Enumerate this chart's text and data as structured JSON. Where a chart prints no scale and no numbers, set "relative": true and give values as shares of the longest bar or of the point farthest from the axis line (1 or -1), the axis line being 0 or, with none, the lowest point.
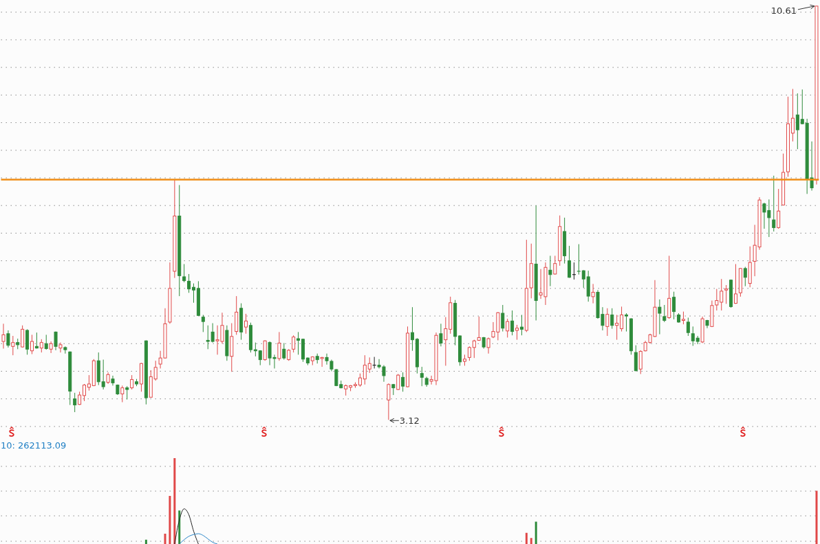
{
  "chart_data": [
    {
      "type": "candlestick",
      "categories": [
        null,
        null,
        null,
        null,
        null,
        null,
        null,
        null,
        null,
        null,
        null,
        null,
        null,
        null,
        null,
        null,
        null,
        null,
        null,
        null,
        null,
        null,
        null,
        null,
        null,
        null,
        null,
        null,
        null,
        null,
        null,
        null,
        null,
        null,
        null,
        null,
        null,
        null,
        null,
        null,
        null,
        null,
        null,
        null,
        null,
        null,
        null,
        null,
        null,
        null,
        null,
        null,
        null,
        null,
        null,
        null,
        null,
        null,
        null,
        null,
        null,
        null,
        null,
        null,
        null,
        null,
        null,
        null,
        null,
        null,
        null,
        null,
        null,
        null,
        null,
        null,
        null,
        null,
        null,
        null,
        null,
        null,
        null,
        null,
        null,
        null,
        null,
        null,
        null,
        null,
        null,
        null,
        null,
        null,
        null,
        null,
        null,
        null,
        null,
        null,
        null,
        null,
        null,
        null,
        null,
        null,
        null,
        null,
        null,
        null,
        null,
        null,
        null,
        null,
        null,
        null,
        null,
        null,
        null,
        null,
        null,
        null,
        null,
        null,
        null,
        null,
        null,
        null,
        null,
        null,
        null,
        null,
        null,
        null,
        null,
        null,
        null,
        null,
        null,
        null,
        null,
        null,
        null,
        null,
        null,
        null,
        null,
        null,
        null,
        null,
        null,
        null,
        null,
        null,
        null,
        null,
        null,
        null,
        null,
        null,
        null,
        null,
        null,
        null,
        null,
        null,
        null,
        null,
        null,
        null,
        null,
        null
      ],
      "ohlc": [
        [
          4.54,
          4.86,
          4.41,
          4.66
        ],
        [
          4.68,
          4.74,
          4.43,
          4.47
        ],
        [
          4.45,
          4.64,
          4.29,
          4.52
        ],
        [
          4.52,
          4.59,
          4.4,
          4.48
        ],
        [
          4.44,
          4.83,
          4.43,
          4.76
        ],
        [
          4.74,
          4.76,
          4.3,
          4.4
        ],
        [
          4.37,
          4.66,
          4.31,
          4.54
        ],
        [
          4.45,
          4.7,
          4.41,
          4.42
        ],
        [
          4.42,
          4.58,
          4.34,
          4.52
        ],
        [
          4.5,
          4.66,
          4.39,
          4.41
        ],
        [
          4.4,
          4.54,
          4.33,
          4.5
        ],
        [
          4.71,
          4.72,
          4.38,
          4.45
        ],
        [
          4.42,
          4.52,
          4.34,
          4.48
        ],
        [
          4.43,
          4.45,
          4.32,
          4.39
        ],
        [
          4.35,
          4.36,
          3.39,
          3.64
        ],
        [
          3.5,
          3.61,
          3.26,
          3.39
        ],
        [
          3.4,
          3.63,
          3.39,
          3.57
        ],
        [
          3.56,
          3.77,
          3.46,
          3.75
        ],
        [
          3.71,
          3.93,
          3.65,
          3.77
        ],
        [
          3.74,
          4.22,
          3.73,
          4.19
        ],
        [
          4.19,
          4.34,
          3.75,
          3.81
        ],
        [
          3.81,
          4.21,
          3.67,
          3.72
        ],
        [
          3.8,
          3.98,
          3.77,
          3.94
        ],
        [
          3.86,
          3.92,
          3.74,
          3.79
        ],
        [
          3.75,
          3.76,
          3.57,
          3.59
        ],
        [
          3.59,
          3.74,
          3.44,
          3.7
        ],
        [
          3.7,
          3.73,
          3.49,
          3.67
        ],
        [
          3.7,
          3.93,
          3.67,
          3.85
        ],
        [
          3.81,
          3.86,
          3.73,
          3.77
        ],
        [
          3.77,
          4.15,
          3.63,
          4.14
        ],
        [
          4.55,
          4.56,
          3.4,
          3.52
        ],
        [
          3.53,
          4.02,
          3.52,
          3.9
        ],
        [
          3.86,
          4.19,
          3.83,
          4.07
        ],
        [
          4.13,
          4.37,
          4.05,
          4.24
        ],
        [
          4.24,
          5.14,
          4.23,
          4.86
        ],
        [
          4.89,
          5.97,
          4.86,
          5.5
        ],
        [
          5.81,
          7.47,
          5.69,
          6.81
        ],
        [
          6.81,
          7.37,
          5.36,
          5.73
        ],
        [
          5.71,
          5.94,
          5.61,
          5.64
        ],
        [
          5.63,
          5.76,
          5.42,
          5.49
        ],
        [
          5.52,
          5.59,
          5.24,
          5.47
        ],
        [
          5.5,
          5.63,
          5.0,
          5.01
        ],
        [
          4.98,
          5.02,
          4.71,
          4.9
        ],
        [
          4.56,
          4.83,
          4.4,
          4.54
        ],
        [
          4.71,
          4.87,
          4.52,
          4.54
        ],
        [
          4.55,
          4.83,
          4.3,
          4.57
        ],
        [
          4.54,
          5.06,
          4.5,
          4.83
        ],
        [
          4.74,
          4.83,
          4.19,
          4.28
        ],
        [
          4.27,
          4.87,
          3.99,
          4.63
        ],
        [
          4.72,
          5.36,
          4.66,
          5.07
        ],
        [
          5.14,
          5.23,
          4.57,
          4.71
        ],
        [
          4.8,
          5.04,
          4.68,
          4.91
        ],
        [
          4.83,
          4.88,
          4.34,
          4.39
        ],
        [
          4.39,
          4.52,
          4.27,
          4.37
        ],
        [
          4.37,
          4.38,
          4.11,
          4.21
        ],
        [
          4.21,
          4.56,
          4.19,
          4.55
        ],
        [
          4.52,
          4.54,
          4.11,
          4.24
        ],
        [
          4.25,
          4.3,
          4.05,
          4.23
        ],
        [
          4.23,
          4.71,
          4.19,
          4.51
        ],
        [
          4.4,
          4.51,
          4.21,
          4.24
        ],
        [
          4.21,
          4.4,
          4.19,
          4.38
        ],
        [
          4.4,
          4.65,
          4.34,
          4.62
        ],
        [
          4.59,
          4.71,
          4.3,
          4.56
        ],
        [
          4.58,
          4.59,
          4.17,
          4.22
        ],
        [
          4.24,
          4.25,
          4.11,
          4.15
        ],
        [
          4.19,
          4.27,
          4.11,
          4.26
        ],
        [
          4.27,
          4.32,
          4.14,
          4.21
        ],
        [
          4.23,
          4.26,
          4.08,
          4.25
        ],
        [
          4.25,
          4.32,
          4.12,
          4.19
        ],
        [
          4.18,
          4.21,
          4.0,
          4.04
        ],
        [
          4.03,
          4.04,
          3.73,
          3.74
        ],
        [
          3.76,
          3.83,
          3.69,
          3.7
        ],
        [
          3.68,
          3.76,
          3.56,
          3.74
        ],
        [
          3.71,
          3.75,
          3.64,
          3.74
        ],
        [
          3.74,
          3.8,
          3.7,
          3.76
        ],
        [
          3.75,
          3.96,
          3.72,
          3.88
        ],
        [
          3.86,
          4.29,
          3.76,
          4.11
        ],
        [
          4.04,
          4.25,
          3.97,
          4.14
        ],
        [
          4.11,
          4.26,
          4.05,
          4.11
        ],
        [
          4.11,
          4.22,
          4.05,
          4.08
        ],
        [
          4.08,
          4.11,
          3.81,
          3.92
        ],
        [
          3.48,
          3.78,
          3.12,
          3.76
        ],
        [
          3.76,
          3.77,
          3.57,
          3.7
        ],
        [
          3.67,
          3.95,
          3.66,
          3.93
        ],
        [
          3.89,
          3.98,
          3.63,
          3.73
        ],
        [
          3.72,
          4.81,
          3.71,
          4.69
        ],
        [
          4.7,
          5.16,
          4.37,
          4.57
        ],
        [
          4.58,
          4.6,
          3.96,
          4.08
        ],
        [
          3.96,
          4.08,
          3.73,
          3.89
        ],
        [
          3.87,
          3.9,
          3.72,
          3.76
        ],
        [
          3.82,
          3.92,
          3.76,
          3.85
        ],
        [
          3.83,
          4.7,
          3.75,
          4.65
        ],
        [
          4.68,
          4.86,
          4.45,
          4.51
        ],
        [
          4.57,
          4.98,
          4.1,
          4.77
        ],
        [
          4.76,
          5.35,
          4.68,
          5.24
        ],
        [
          5.23,
          5.29,
          4.47,
          4.63
        ],
        [
          4.64,
          4.65,
          4.1,
          4.17
        ],
        [
          4.18,
          4.3,
          4.1,
          4.22
        ],
        [
          4.25,
          4.45,
          4.19,
          4.43
        ],
        [
          4.43,
          4.57,
          4.24,
          4.55
        ],
        [
          4.56,
          4.99,
          4.55,
          4.61
        ],
        [
          4.61,
          4.62,
          4.41,
          4.44
        ],
        [
          4.43,
          4.61,
          4.32,
          4.59
        ],
        [
          4.62,
          4.89,
          4.6,
          4.72
        ],
        [
          4.71,
          5.07,
          4.56,
          5.06
        ],
        [
          5.05,
          5.2,
          4.72,
          4.78
        ],
        [
          4.73,
          4.95,
          4.61,
          4.9
        ],
        [
          4.91,
          5.1,
          4.65,
          4.72
        ],
        [
          4.74,
          4.84,
          4.57,
          4.78
        ],
        [
          4.8,
          5.02,
          4.65,
          4.76
        ],
        [
          4.74,
          6.38,
          4.71,
          5.5
        ],
        [
          5.51,
          6.31,
          5.32,
          5.95
        ],
        [
          5.94,
          7.0,
          4.92,
          5.28
        ],
        [
          5.38,
          5.85,
          5.31,
          5.42
        ],
        [
          5.35,
          5.97,
          5.2,
          5.88
        ],
        [
          5.83,
          6.09,
          5.54,
          5.75
        ],
        [
          5.76,
          6.09,
          5.75,
          5.95
        ],
        [
          6.0,
          6.82,
          5.91,
          6.62
        ],
        [
          6.53,
          6.78,
          5.95,
          6.09
        ],
        [
          6.0,
          6.27,
          5.69,
          5.7
        ],
        [
          5.75,
          5.97,
          5.66,
          5.75
        ],
        [
          5.81,
          6.3,
          5.75,
          5.8
        ],
        [
          5.82,
          5.83,
          5.51,
          5.67
        ],
        [
          5.71,
          5.82,
          5.26,
          5.36
        ],
        [
          5.35,
          5.58,
          5.23,
          5.43
        ],
        [
          5.43,
          5.47,
          4.95,
          4.97
        ],
        [
          5.03,
          5.16,
          4.74,
          4.83
        ],
        [
          4.81,
          5.14,
          4.64,
          5.03
        ],
        [
          5.02,
          5.14,
          4.77,
          4.83
        ],
        [
          4.83,
          5.02,
          4.57,
          4.87
        ],
        [
          4.77,
          5.17,
          4.72,
          5.02
        ],
        [
          5.02,
          5.05,
          4.72,
          5.0
        ],
        [
          4.95,
          4.96,
          4.3,
          4.37
        ],
        [
          4.34,
          4.47,
          4.0,
          4.01
        ],
        [
          4.04,
          4.38,
          3.95,
          4.36
        ],
        [
          4.37,
          4.55,
          4.36,
          4.52
        ],
        [
          4.52,
          4.68,
          4.5,
          4.66
        ],
        [
          4.63,
          5.65,
          4.62,
          5.16
        ],
        [
          5.16,
          5.3,
          4.67,
          5.05
        ],
        [
          4.99,
          5.2,
          4.89,
          4.92
        ],
        [
          4.97,
          6.09,
          4.95,
          5.32
        ],
        [
          5.34,
          5.44,
          4.94,
          5.08
        ],
        [
          5.02,
          5.05,
          4.88,
          4.89
        ],
        [
          4.92,
          5.08,
          4.85,
          4.94
        ],
        [
          4.89,
          4.97,
          4.64,
          4.7
        ],
        [
          4.68,
          4.81,
          4.46,
          4.55
        ],
        [
          4.6,
          4.64,
          4.49,
          4.54
        ],
        [
          4.53,
          4.99,
          4.51,
          4.95
        ],
        [
          4.92,
          4.93,
          4.78,
          4.83
        ],
        [
          4.81,
          5.28,
          4.8,
          5.19
        ],
        [
          5.2,
          5.49,
          5.1,
          5.28
        ],
        [
          5.25,
          5.67,
          5.1,
          5.45
        ],
        [
          5.47,
          5.56,
          5.22,
          5.49
        ],
        [
          5.65,
          5.66,
          5.15,
          5.17
        ],
        [
          5.23,
          5.94,
          5.22,
          5.4
        ],
        [
          5.42,
          5.87,
          5.35,
          5.86
        ],
        [
          5.86,
          5.89,
          5.54,
          5.7
        ],
        [
          5.59,
          6.26,
          5.52,
          5.97
        ],
        [
          5.99,
          6.65,
          5.72,
          6.28
        ],
        [
          6.25,
          7.15,
          6.2,
          7.1
        ],
        [
          7.03,
          7.05,
          6.58,
          6.88
        ],
        [
          6.91,
          7.11,
          6.43,
          6.78
        ],
        [
          6.74,
          7.54,
          6.53,
          6.6
        ],
        [
          6.6,
          7.3,
          6.58,
          6.9
        ],
        [
          7.01,
          7.94,
          7.0,
          7.6
        ],
        [
          7.61,
          8.97,
          7.52,
          8.48
        ],
        [
          8.31,
          9.11,
          8.16,
          8.58
        ],
        [
          8.64,
          9.03,
          8.02,
          8.37
        ],
        [
          8.56,
          9.1,
          8.47,
          8.48
        ],
        [
          8.49,
          8.57,
          7.21,
          7.47
        ],
        [
          7.5,
          8.16,
          7.27,
          7.32
        ],
        [
          7.46,
          10.61,
          7.38,
          10.61
        ]
      ],
      "colors": [
        "#e04848",
        "#2e8b3b",
        "#e04848",
        "#2e8b3b",
        "#e04848",
        "#2e8b3b",
        "#e04848",
        "#2e8b3b",
        "#e04848",
        "#2e8b3b",
        "#e04848",
        "#2e8b3b",
        "#e04848",
        "#2e8b3b",
        "#2e8b3b",
        "#2e8b3b",
        "#e04848",
        "#e04848",
        "#e04848",
        "#e04848",
        "#2e8b3b",
        "#2e8b3b",
        "#e04848",
        "#2e8b3b",
        "#2e8b3b",
        "#e04848",
        "#2e8b3b",
        "#e04848",
        "#2e8b3b",
        "#e04848",
        "#2e8b3b",
        "#e04848",
        "#e04848",
        "#e04848",
        "#e04848",
        "#e04848",
        "#e04848",
        "#2e8b3b",
        "#2e8b3b",
        "#2e8b3b",
        "#2e8b3b",
        "#2e8b3b",
        "#2e8b3b",
        "#2e8b3b",
        "#2e8b3b",
        "#e04848",
        "#e04848",
        "#2e8b3b",
        "#e04848",
        "#e04848",
        "#2e8b3b",
        "#e04848",
        "#2e8b3b",
        "#2e8b3b",
        "#2e8b3b",
        "#e04848",
        "#2e8b3b",
        "#2e8b3b",
        "#e04848",
        "#2e8b3b",
        "#e04848",
        "#e04848",
        "#2e8b3b",
        "#2e8b3b",
        "#2e8b3b",
        "#e04848",
        "#2e8b3b",
        "#e04848",
        "#2e8b3b",
        "#2e8b3b",
        "#2e8b3b",
        "#2e8b3b",
        "#e04848",
        "#e04848",
        "#e04848",
        "#e04848",
        "#e04848",
        "#e04848",
        "#222222",
        "#2e8b3b",
        "#2e8b3b",
        "#e04848",
        "#2e8b3b",
        "#e04848",
        "#2e8b3b",
        "#e04848",
        "#2e8b3b",
        "#2e8b3b",
        "#2e8b3b",
        "#2e8b3b",
        "#e04848",
        "#e04848",
        "#2e8b3b",
        "#e04848",
        "#e04848",
        "#2e8b3b",
        "#2e8b3b",
        "#e04848",
        "#e04848",
        "#e04848",
        "#e04848",
        "#2e8b3b",
        "#e04848",
        "#e04848",
        "#e04848",
        "#2e8b3b",
        "#e04848",
        "#2e8b3b",
        "#e04848",
        "#2e8b3b",
        "#e04848",
        "#e04848",
        "#2e8b3b",
        "#e04848",
        "#e04848",
        "#2e8b3b",
        "#e04848",
        "#e04848",
        "#2e8b3b",
        "#2e8b3b",
        "#222222",
        "#2e8b3b",
        "#2e8b3b",
        "#2e8b3b",
        "#e04848",
        "#2e8b3b",
        "#2e8b3b",
        "#e04848",
        "#2e8b3b",
        "#e04848",
        "#e04848",
        "#2e8b3b",
        "#2e8b3b",
        "#2e8b3b",
        "#e04848",
        "#e04848",
        "#e04848",
        "#e04848",
        "#2e8b3b",
        "#2e8b3b",
        "#e04848",
        "#2e8b3b",
        "#2e8b3b",
        "#e04848",
        "#2e8b3b",
        "#2e8b3b",
        "#2e8b3b",
        "#e04848",
        "#2e8b3b",
        "#e04848",
        "#e04848",
        "#e04848",
        "#e04848",
        "#2e8b3b",
        "#e04848",
        "#e04848",
        "#2e8b3b",
        "#e04848",
        "#e04848",
        "#e04848",
        "#2e8b3b",
        "#2e8b3b",
        "#2e8b3b",
        "#e04848",
        "#e04848",
        "#e04848",
        "#e04848",
        "#2e8b3b",
        "#2e8b3b",
        "#2e8b3b",
        "#2e8b3b",
        "#e04848"
      ],
      "yticks": [
        {
          "value": 3,
          "label": null
        },
        {
          "value": 3.5,
          "label": null
        },
        {
          "value": 4,
          "label": null
        },
        {
          "value": 4.5,
          "label": null
        },
        {
          "value": 5,
          "label": null
        },
        {
          "value": 5.5,
          "label": null
        },
        {
          "value": 6,
          "label": null
        },
        {
          "value": 6.5,
          "label": null
        },
        {
          "value": 7,
          "label": null
        },
        {
          "value": 7.5,
          "label": null
        },
        {
          "value": 8,
          "label": null
        },
        {
          "value": 8.5,
          "label": null
        },
        {
          "value": 9,
          "label": null
        },
        {
          "value": 9.5,
          "label": null
        },
        {
          "value": 10,
          "label": null
        },
        {
          "value": 10.5,
          "label": null
        }
      ],
      "grid": "y",
      "tick_labels": false,
      "ref_lines": [
        {
          "axis": "y",
          "value": 7.47,
          "color": "#f08c14"
        }
      ],
      "annotations": [
        "10.61",
        "3.12"
      ]
    },
    {
      "type": "bar",
      "relative": true,
      "categories": [
        null,
        null,
        null,
        null,
        null,
        null,
        null,
        null,
        null,
        null,
        null,
        null,
        null,
        null,
        null,
        null,
        null,
        null,
        null,
        null,
        null,
        null,
        null,
        null,
        null,
        null,
        null,
        null,
        null,
        null,
        null,
        null,
        null,
        null,
        null,
        null,
        null,
        null,
        null,
        null,
        null,
        null,
        null,
        null,
        null,
        null,
        null,
        null,
        null,
        null,
        null,
        null,
        null,
        null,
        null,
        null,
        null,
        null,
        null,
        null,
        null,
        null,
        null,
        null,
        null,
        null,
        null,
        null,
        null,
        null,
        null,
        null,
        null,
        null,
        null,
        null,
        null,
        null,
        null,
        null,
        null,
        null,
        null,
        null,
        null,
        null,
        null,
        null,
        null,
        null,
        null,
        null,
        null,
        null,
        null,
        null,
        null,
        null,
        null,
        null,
        null,
        null,
        null,
        null,
        null,
        null,
        null,
        null,
        null,
        null,
        null,
        null,
        null,
        null,
        null,
        null,
        null,
        null,
        null,
        null,
        null,
        null,
        null,
        null,
        null,
        null,
        null,
        null,
        null,
        null,
        null,
        null,
        null,
        null,
        null,
        null,
        null,
        null,
        null,
        null,
        null,
        null,
        null,
        null,
        null,
        null,
        null,
        null,
        null,
        null,
        null,
        null,
        null,
        null,
        null,
        null,
        null,
        null,
        null,
        null,
        null,
        null,
        null,
        null,
        null,
        null,
        null,
        null,
        null,
        null,
        null,
        null
      ],
      "series": [
        {
          "type": "bar",
          "values": [
            null,
            null,
            null,
            null,
            null,
            null,
            null,
            null,
            null,
            null,
            null,
            null,
            null,
            null,
            null,
            null,
            null,
            null,
            null,
            null,
            null,
            null,
            null,
            null,
            null,
            null,
            null,
            null,
            null,
            null,
            0.05,
            null,
            null,
            null,
            0.12,
            0.56,
            1,
            0.39,
            null,
            null,
            null,
            null,
            null,
            null,
            null,
            null,
            null,
            null,
            null,
            null,
            null,
            null,
            null,
            null,
            null,
            null,
            null,
            null,
            null,
            null,
            null,
            null,
            null,
            null,
            null,
            null,
            null,
            null,
            null,
            null,
            null,
            null,
            null,
            null,
            null,
            null,
            null,
            null,
            null,
            null,
            null,
            null,
            null,
            null,
            null,
            null,
            null,
            null,
            null,
            null,
            null,
            null,
            null,
            null,
            null,
            null,
            null,
            null,
            null,
            null,
            null,
            null,
            null,
            null,
            null,
            null,
            null,
            null,
            null,
            null,
            0.13,
            0.07,
            0.26,
            null,
            null,
            null,
            null,
            null,
            null,
            null,
            null,
            null,
            null,
            null,
            null,
            null,
            null,
            null,
            null,
            null,
            null,
            null,
            null,
            null,
            null,
            null,
            null,
            null,
            null,
            null,
            null,
            null,
            null,
            null,
            null,
            null,
            null,
            null,
            null,
            null,
            null,
            null,
            null,
            null,
            null,
            null,
            null,
            null,
            null,
            null,
            null,
            null,
            null,
            null,
            null,
            null,
            null,
            null,
            null,
            null,
            null,
            0.62
          ],
          "colors": [
            null,
            null,
            null,
            null,
            null,
            null,
            null,
            null,
            null,
            null,
            null,
            null,
            null,
            null,
            null,
            null,
            null,
            null,
            null,
            null,
            null,
            null,
            null,
            null,
            null,
            null,
            null,
            null,
            null,
            null,
            "#2e8b3b",
            null,
            null,
            null,
            "#e04848",
            "#e04848",
            "#e04848",
            "#2e8b3b",
            null,
            null,
            null,
            null,
            null,
            null,
            null,
            null,
            null,
            null,
            null,
            null,
            null,
            null,
            null,
            null,
            null,
            null,
            null,
            null,
            null,
            null,
            null,
            null,
            null,
            null,
            null,
            null,
            null,
            null,
            null,
            null,
            null,
            null,
            null,
            null,
            null,
            null,
            null,
            null,
            null,
            null,
            null,
            null,
            null,
            null,
            null,
            null,
            null,
            null,
            null,
            null,
            null,
            null,
            null,
            null,
            null,
            null,
            null,
            null,
            null,
            null,
            null,
            null,
            null,
            null,
            null,
            null,
            null,
            null,
            null,
            null,
            "#e04848",
            "#e04848",
            "#2e8b3b",
            null,
            null,
            null,
            null,
            null,
            null,
            null,
            null,
            null,
            null,
            null,
            null,
            null,
            null,
            null,
            null,
            null,
            null,
            null,
            null,
            null,
            null,
            null,
            null,
            null,
            null,
            null,
            null,
            null,
            null,
            null,
            null,
            null,
            null,
            null,
            null,
            null,
            null,
            null,
            null,
            null,
            null,
            null,
            null,
            null,
            null,
            null,
            null,
            null,
            null,
            null,
            null,
            null,
            null,
            null,
            null,
            null,
            null,
            "#e04848"
          ]
        },
        {
          "type": "line",
          "color": "#222222",
          "values": [
            null,
            null,
            null,
            null,
            null,
            null,
            null,
            null,
            null,
            null,
            null,
            null,
            null,
            null,
            null,
            null,
            null,
            null,
            null,
            null,
            null,
            null,
            null,
            null,
            null,
            null,
            null,
            null,
            null,
            null,
            null,
            null,
            null,
            null,
            null,
            null,
            0,
            0.28,
            0.41,
            0.34,
            0.15,
            0,
            null,
            null,
            null,
            null,
            null,
            null,
            null,
            null,
            null,
            null,
            null,
            null,
            null,
            null,
            null,
            null,
            null,
            null,
            null,
            null,
            null,
            null,
            null,
            null,
            null,
            null,
            null,
            null,
            null,
            null,
            null,
            null,
            null,
            null,
            null,
            null,
            null,
            null,
            null,
            null,
            null,
            null,
            null,
            null,
            null,
            null,
            null,
            null,
            null,
            null,
            null,
            null,
            null,
            null,
            null,
            null,
            null,
            null,
            null,
            null,
            null,
            null,
            null,
            null,
            null,
            null,
            null,
            null,
            null,
            null,
            null,
            null,
            null,
            null,
            null,
            null,
            null,
            null,
            null,
            null,
            null,
            null,
            null,
            null,
            null,
            null,
            null,
            null,
            null,
            null,
            null,
            null,
            null,
            null,
            null,
            null,
            null,
            null,
            null,
            null,
            null,
            null,
            null,
            null,
            null,
            null,
            null,
            null,
            null,
            null,
            null,
            null,
            null,
            null,
            null,
            null,
            null,
            null,
            null,
            null,
            null,
            null,
            null,
            null,
            null,
            null,
            null,
            null,
            null,
            null
          ]
        },
        {
          "type": "line",
          "color": "#2a86c8",
          "values": [
            null,
            null,
            null,
            null,
            null,
            null,
            null,
            null,
            null,
            null,
            null,
            null,
            null,
            null,
            null,
            null,
            null,
            null,
            null,
            null,
            null,
            null,
            null,
            null,
            null,
            null,
            null,
            null,
            null,
            null,
            null,
            null,
            null,
            null,
            null,
            null,
            null,
            0,
            0.05,
            0.09,
            0.11,
            0.12,
            0.1,
            0.06,
            0.02,
            0,
            null,
            null,
            null,
            null,
            null,
            null,
            null,
            null,
            null,
            null,
            null,
            null,
            null,
            null,
            null,
            null,
            null,
            null,
            null,
            null,
            null,
            null,
            null,
            null,
            null,
            null,
            null,
            null,
            null,
            null,
            null,
            null,
            null,
            null,
            null,
            null,
            null,
            null,
            null,
            null,
            null,
            null,
            null,
            null,
            null,
            null,
            null,
            null,
            null,
            null,
            null,
            null,
            null,
            null,
            null,
            null,
            null,
            null,
            null,
            null,
            null,
            null,
            null,
            null,
            null,
            null,
            null,
            null,
            null,
            null,
            null,
            null,
            null,
            null,
            null,
            null,
            null,
            null,
            null,
            null,
            null,
            null,
            null,
            null,
            null,
            null,
            null,
            null,
            null,
            null,
            null,
            null,
            null,
            null,
            null,
            null,
            null,
            null,
            null,
            null,
            null,
            null,
            null,
            null,
            null,
            null,
            null,
            null,
            null,
            null,
            null,
            null,
            null,
            null,
            null,
            null,
            null,
            null,
            null,
            null,
            null,
            null,
            null,
            null,
            null,
            null
          ]
        }
      ],
      "grid": "y",
      "tick_labels": false,
      "annotations": [
        "10: 262113.09"
      ]
    }
  ]
}
